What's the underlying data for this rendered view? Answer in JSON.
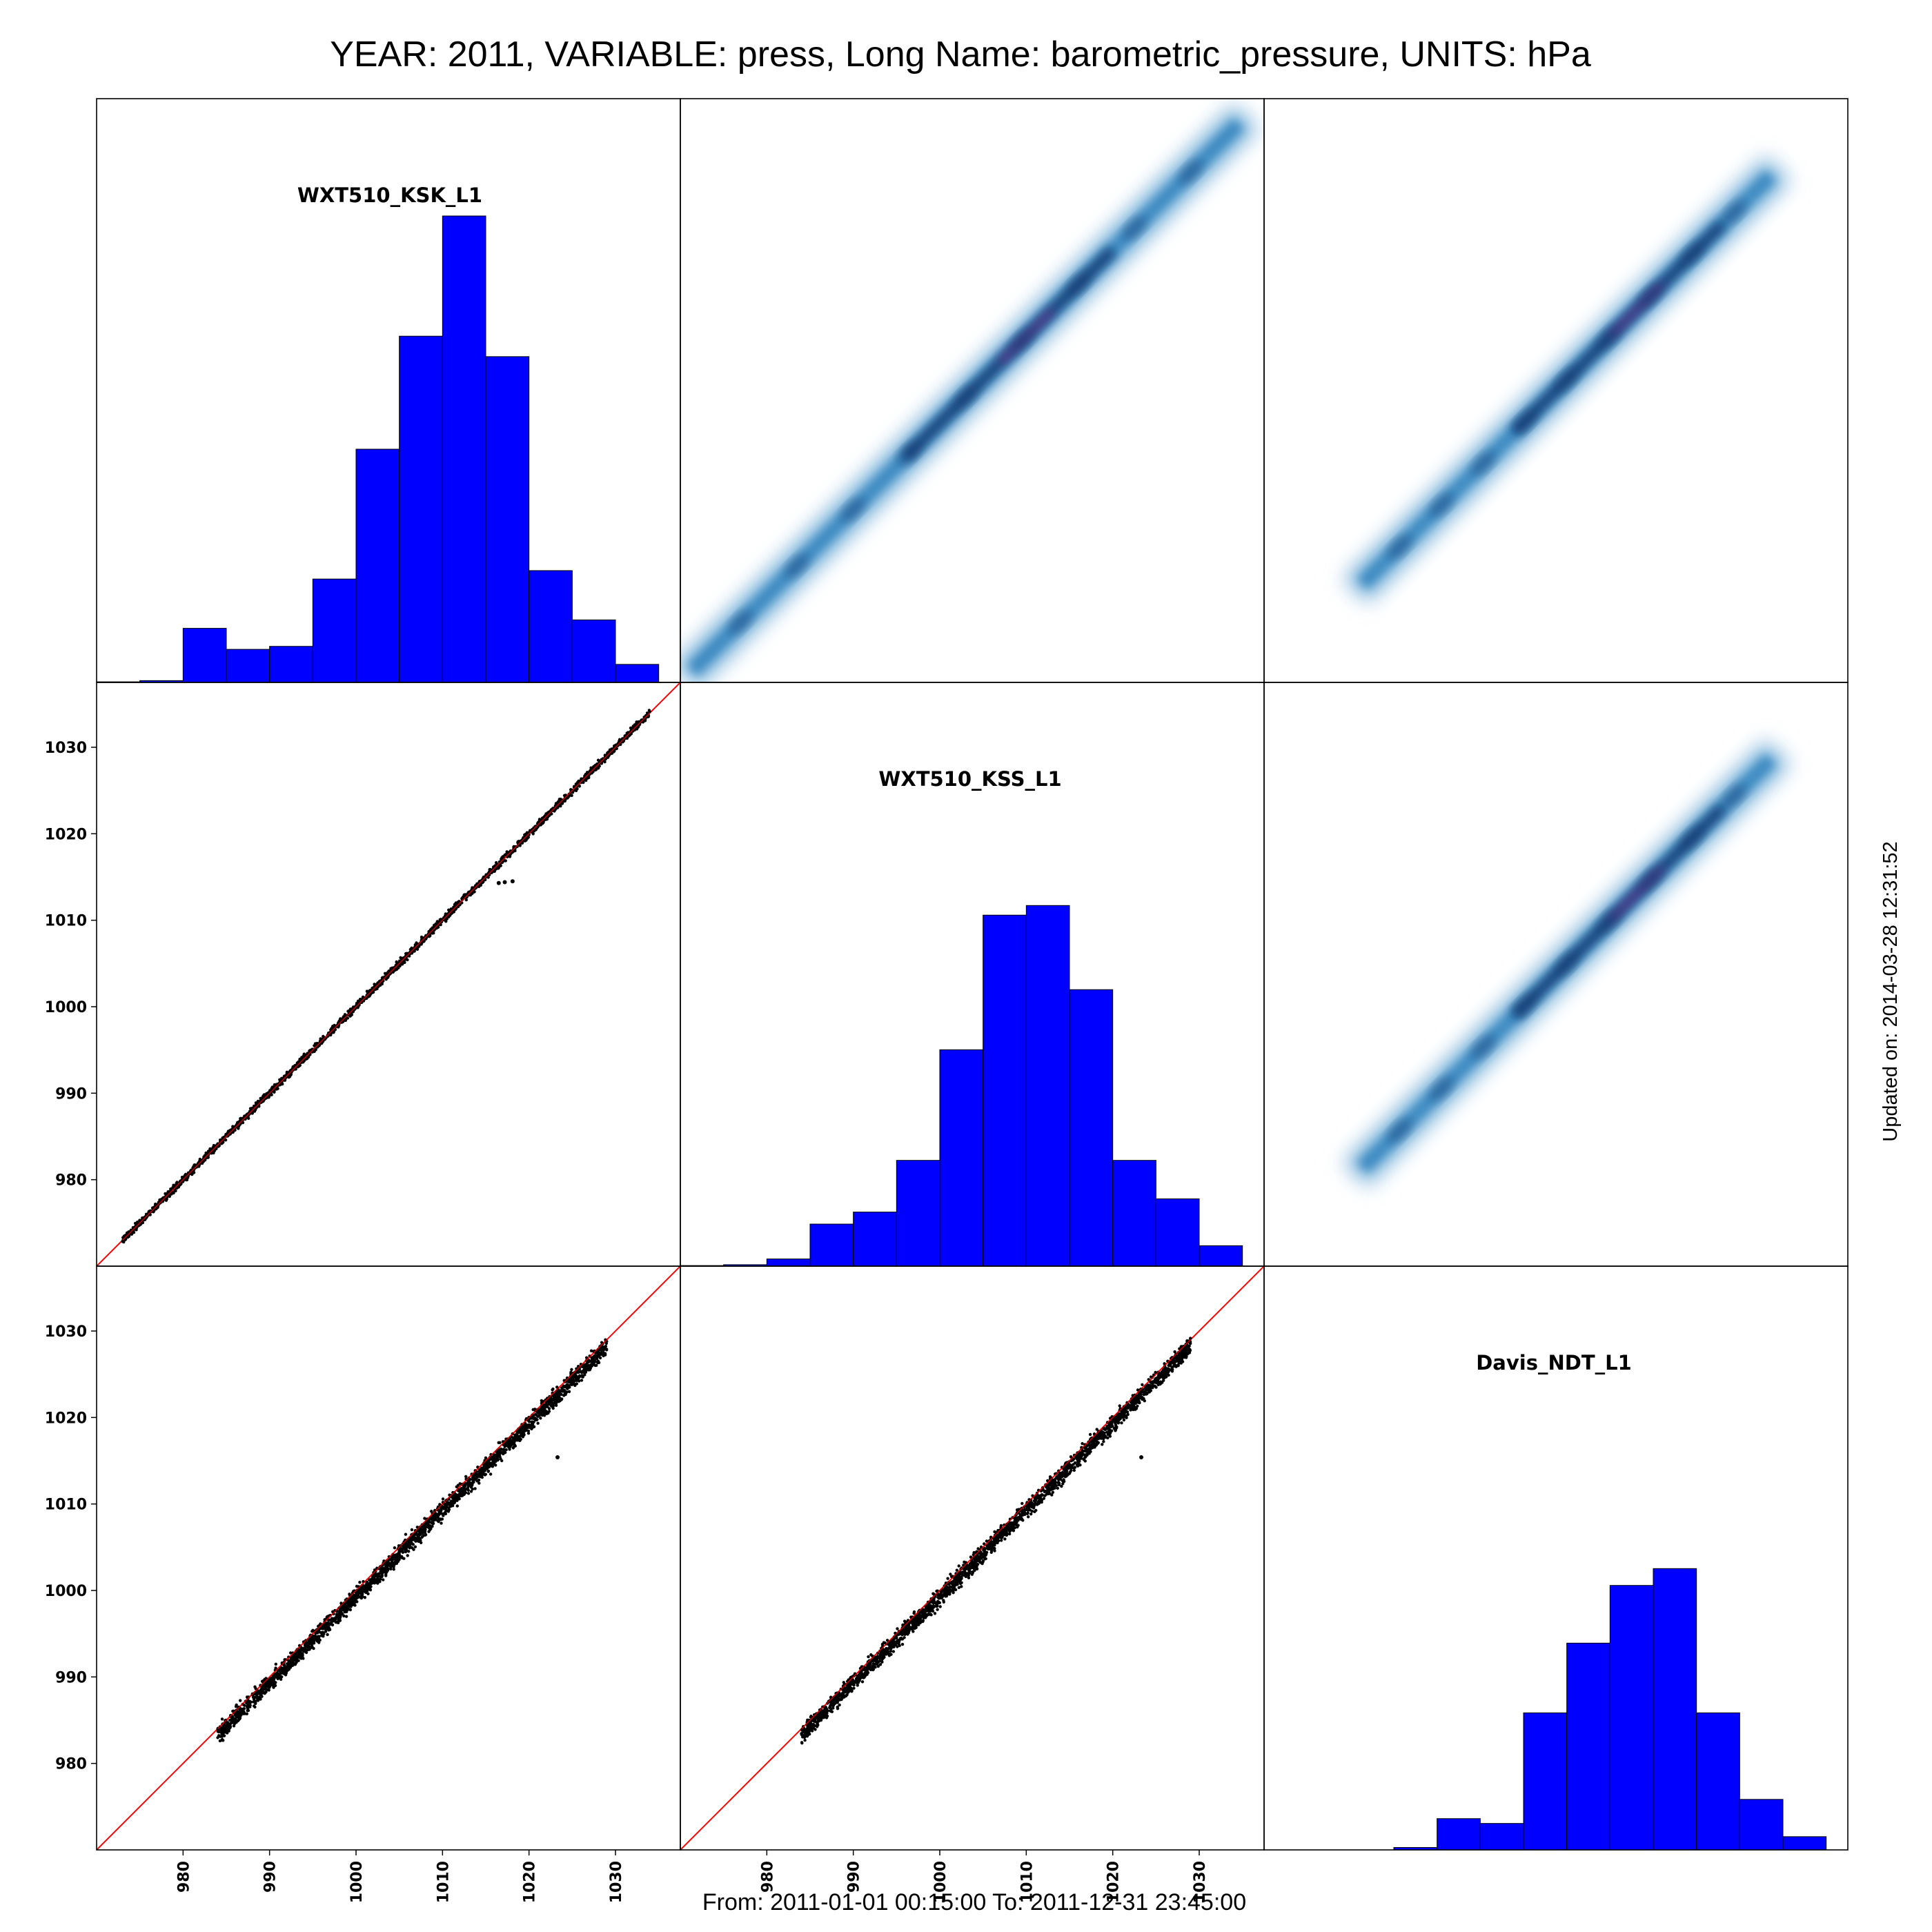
{
  "title": "YEAR: 2011, VARIABLE: press, Long Name: barometric_pressure, UNITS: hPa",
  "footer": "From: 2011-01-01 00:15:00 To: 2011-12-31 23:45:00",
  "updated": "Updated on: 2014-03-28 12:31:52",
  "colors": {
    "histogram_fill": "#0000FF",
    "identity_line": "#FF0000",
    "scatter_points": "#000000",
    "density_low": "#C6DBEF",
    "density_mid": "#3182BD",
    "density_high": "#08306B",
    "density_peak": "#7B3294"
  },
  "chart_data": {
    "type": "scatter-matrix",
    "variables": [
      "WXT510_KSK_L1",
      "WXT510_KSS_L1",
      "Davis_NDT_L1"
    ],
    "axis_range": [
      970,
      1037.5
    ],
    "ticks": [
      980,
      990,
      1000,
      1010,
      1020,
      1030
    ],
    "histograms": [
      {
        "variable": "WXT510_KSK_L1",
        "bin_edges": [
          970,
          975,
          980,
          985,
          990,
          995,
          1000,
          1005,
          1010,
          1015,
          1020,
          1025,
          1030,
          1035
        ],
        "relative_heights": [
          0.005,
          0.015,
          0.45,
          0.275,
          0.3,
          0.86,
          1.94,
          2.88,
          3.88,
          2.71,
          0.93,
          0.52,
          0.15,
          0.0
        ],
        "note_scale": ""
      },
      {
        "variable": "WXT510_KSS_L1",
        "bin_edges": [
          970,
          975,
          980,
          985,
          990,
          995,
          1000,
          1005,
          1010,
          1015,
          1020,
          1025,
          1030,
          1035
        ],
        "relative_heights": [
          0.005,
          0.012,
          0.06,
          0.35,
          0.45,
          0.88,
          1.8,
          2.92,
          3.0,
          2.3,
          0.88,
          0.56,
          0.17,
          0.0
        ],
        "note_scale": ""
      },
      {
        "variable": "Davis_NDT_L1",
        "bin_edges": [
          970,
          975,
          980,
          985,
          990,
          995,
          1000,
          1005,
          1010,
          1015,
          1020,
          1025,
          1030,
          1035
        ],
        "relative_heights": [
          0,
          0,
          0,
          0.02,
          0.26,
          0.22,
          1.14,
          1.72,
          2.2,
          2.34,
          1.14,
          0.42,
          0.11,
          0
        ],
        "note_scale": ""
      }
    ],
    "scatter_panels": [
      {
        "x_variable": "WXT510_KSK_L1",
        "y_variable": "WXT510_KSS_L1",
        "x_range": [
          973,
          1034
        ],
        "offset": 0,
        "spread": 0.4,
        "outliers": [
          [
            1016.5,
            1014.3
          ],
          [
            1017.2,
            1014.4
          ],
          [
            1018.1,
            1014.5
          ]
        ]
      },
      {
        "x_variable": "WXT510_KSK_L1",
        "y_variable": "Davis_NDT_L1",
        "x_range": [
          984,
          1029
        ],
        "offset": -0.7,
        "spread": 1.0,
        "outliers": [
          [
            1023.3,
            1015.4
          ]
        ]
      },
      {
        "x_variable": "WXT510_KSS_L1",
        "y_variable": "Davis_NDT_L1",
        "x_range": [
          984,
          1029
        ],
        "offset": -0.7,
        "spread": 1.0,
        "outliers": [
          [
            1023.3,
            1015.4
          ]
        ]
      }
    ],
    "density_panels": [
      {
        "x_variable": "WXT510_KSS_L1",
        "y_variable": "WXT510_KSK_L1",
        "x_range": [
          972,
          1034
        ],
        "peak_at": 1010
      },
      {
        "x_variable": "Davis_NDT_L1",
        "y_variable": "WXT510_KSK_L1",
        "x_range": [
          982,
          1028
        ],
        "peak_at": 1013
      },
      {
        "x_variable": "Davis_NDT_L1",
        "y_variable": "WXT510_KSS_L1",
        "x_range": [
          982,
          1028
        ],
        "peak_at": 1013
      }
    ],
    "identity_line": true
  }
}
